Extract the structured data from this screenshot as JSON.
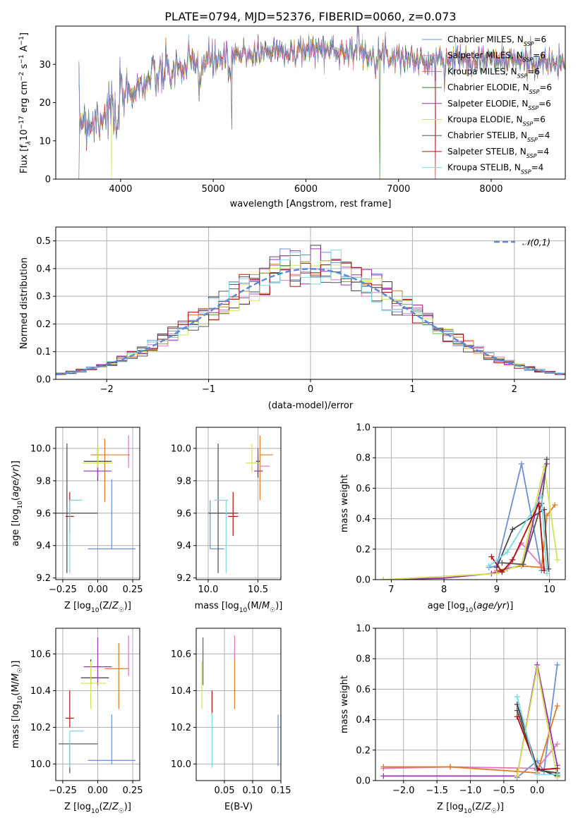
{
  "figure_title": "PLATE=0794, MJD=52376, FIBERID=0060, z=0.073",
  "colors": {
    "Chabrier MILES": "#1f77b4",
    "Salpeter MILES": "#e377c2",
    "Kroupa MILES": "#e07b24",
    "Chabrier ELODIE": "#3a3a3a",
    "Salpeter ELODIE": "#9b30b0",
    "Kroupa ELODIE": "#d4e157",
    "Chabrier STELIB": "#555555",
    "Salpeter STELIB": "#b01010",
    "Kroupa STELIB": "#7fd8e0",
    "chab_miles_line": "#6a8fd8",
    "chab_elodie_line": "#4a4a4a",
    "gauss": "#5b8bd8"
  },
  "chart_data": [
    {
      "id": "spectrum",
      "type": "line",
      "xlabel": "wavelength [Angstrom, rest frame]",
      "ylabel_parts": [
        "Flux [f",
        "λ",
        "10",
        "−17",
        " erg cm",
        "−2",
        " s",
        "−1",
        " A",
        "−1",
        "]"
      ],
      "xlim": [
        3300,
        8800
      ],
      "ylim": [
        0,
        40
      ],
      "xticks": [
        4000,
        5000,
        6000,
        7000,
        8000
      ],
      "yticks": [
        0,
        10,
        20,
        30
      ],
      "grid": false,
      "legend_position": "top-right",
      "spectrum_shape": {
        "x_start": 3550,
        "x_end": 8800,
        "continuum": [
          [
            3550,
            16
          ],
          [
            3700,
            15
          ],
          [
            3950,
            20
          ],
          [
            4100,
            23
          ],
          [
            4400,
            27
          ],
          [
            4800,
            30
          ],
          [
            5200,
            32
          ],
          [
            5600,
            33.5
          ],
          [
            6000,
            34
          ],
          [
            6500,
            33.5
          ],
          [
            7000,
            32
          ],
          [
            7300,
            30.5
          ],
          [
            7600,
            31.5
          ],
          [
            8200,
            31
          ],
          [
            8800,
            30
          ]
        ]
      },
      "series": [
        {
          "name": "Chabrier MILES",
          "nssp": "6",
          "color_key": "Chabrier MILES"
        },
        {
          "name": "Salpeter MILES",
          "nssp": "6",
          "color_key": "Salpeter MILES"
        },
        {
          "name": "Kroupa MILES",
          "nssp": "6",
          "color_key": "Kroupa MILES"
        },
        {
          "name": "Chabrier ELODIE",
          "nssp": "6",
          "color_key": "Chabrier ELODIE"
        },
        {
          "name": "Salpeter ELODIE",
          "nssp": "6",
          "color_key": "Salpeter ELODIE"
        },
        {
          "name": "Kroupa ELODIE",
          "nssp": "6",
          "color_key": "Kroupa ELODIE"
        },
        {
          "name": "Chabrier STELIB",
          "nssp": "4",
          "color_key": "Chabrier STELIB"
        },
        {
          "name": "Salpeter STELIB",
          "nssp": "4",
          "color_key": "Salpeter STELIB"
        },
        {
          "name": "Kroupa STELIB",
          "nssp": "4",
          "color_key": "Kroupa STELIB"
        }
      ]
    },
    {
      "id": "residuals",
      "type": "step",
      "xlabel": "(data-model)/error",
      "ylabel": "Normed distribution",
      "xlim": [
        -2.5,
        2.5
      ],
      "ylim": [
        0,
        0.55
      ],
      "xticks": [
        -2,
        -1,
        0,
        1,
        2
      ],
      "yticks": [
        0.0,
        0.1,
        0.2,
        0.3,
        0.4,
        0.5
      ],
      "grid": true,
      "legend": {
        "label": "𝒩(0,1)",
        "position": "top-right"
      },
      "bin_width": 0.1
    },
    {
      "id": "age_vs_Z",
      "type": "errorbar",
      "xlabel": "Z [log10(Z/Z☉)]",
      "ylabel": "age  [log10(age/yr)]",
      "xlim": [
        -0.3,
        0.3
      ],
      "ylim": [
        9.19,
        10.13
      ],
      "xticks": [
        -0.25,
        0.0,
        0.25
      ],
      "yticks": [
        9.2,
        9.4,
        9.6,
        9.8,
        10.0
      ],
      "grid": true,
      "points": [
        {
          "c": "chab_miles_line",
          "x": 0.1,
          "xerr": [
            0.17,
            0.17
          ],
          "y": 9.38,
          "yerr": [
            0.0,
            0.43
          ]
        },
        {
          "c": "Kroupa MILES",
          "x": 0.05,
          "xerr": [
            0.1,
            0.18
          ],
          "y": 9.96,
          "yerr": [
            0.29,
            0.1
          ]
        },
        {
          "c": "Salpeter MILES",
          "x": 0.22,
          "xerr": [
            0.0,
            0.0
          ],
          "y": 9.96,
          "yerr": [
            0.08,
            0.12
          ]
        },
        {
          "c": "Chabrier ELODIE",
          "x": 0.0,
          "xerr": [
            0.1,
            0.1
          ],
          "y": 9.92,
          "yerr": [
            0.12,
            0.08
          ]
        },
        {
          "c": "Salpeter ELODIE",
          "x": 0.0,
          "xerr": [
            0.1,
            0.1
          ],
          "y": 9.86,
          "yerr": [
            0.04,
            0.14
          ]
        },
        {
          "c": "Kroupa ELODIE",
          "x": 0.0,
          "xerr": [
            0.11,
            0.11
          ],
          "y": 9.91,
          "yerr": [
            0.03,
            0.1
          ]
        },
        {
          "c": "chab_elodie_line",
          "x": -0.22,
          "xerr": [
            0.1,
            0.22
          ],
          "y": 9.6,
          "yerr": [
            0.37,
            0.43
          ]
        },
        {
          "c": "Salpeter STELIB",
          "x": -0.2,
          "xerr": [
            0.03,
            0.03
          ],
          "y": 9.58,
          "yerr": [
            0.1,
            0.15
          ]
        },
        {
          "c": "Kroupa STELIB",
          "x": -0.2,
          "xerr": [
            0.0,
            0.09
          ],
          "y": 9.68,
          "yerr": [
            0.45,
            0.0
          ]
        }
      ]
    },
    {
      "id": "age_vs_mass",
      "type": "errorbar",
      "xlabel": "mass [log10(M/M☉)]",
      "ylabel": "",
      "xlim": [
        9.88,
        10.73
      ],
      "ylim": [
        9.19,
        10.13
      ],
      "xticks": [
        10.0,
        10.5
      ],
      "yticks": [
        9.2,
        9.4,
        9.6,
        9.8,
        10.0
      ],
      "grid": true,
      "points": [
        {
          "c": "chab_miles_line",
          "x": 10.02,
          "xerr": [
            0.0,
            0.14
          ],
          "y": 9.38,
          "yerr": [
            0.0,
            0.3
          ]
        },
        {
          "c": "Kroupa MILES",
          "x": 10.52,
          "xerr": [
            0.0,
            0.13
          ],
          "y": 9.96,
          "yerr": [
            0.28,
            0.12
          ]
        },
        {
          "c": "Salpeter MILES",
          "x": 10.55,
          "xerr": [
            0.03,
            0.07
          ],
          "y": 9.89,
          "yerr": [
            0.0,
            0.0
          ]
        },
        {
          "c": "Chabrier ELODIE",
          "x": 10.5,
          "xerr": [
            0.02,
            0.02
          ],
          "y": 9.92,
          "yerr": [
            0.1,
            0.04
          ]
        },
        {
          "c": "Salpeter ELODIE",
          "x": 10.5,
          "xerr": [
            0.04,
            0.05
          ],
          "y": 9.86,
          "yerr": [
            0.0,
            0.14
          ]
        },
        {
          "c": "Kroupa ELODIE",
          "x": 10.44,
          "xerr": [
            0.06,
            0.06
          ],
          "y": 9.91,
          "yerr": [
            0.06,
            0.12
          ]
        },
        {
          "c": "chab_elodie_line",
          "x": 10.1,
          "xerr": [
            0.1,
            0.2
          ],
          "y": 9.6,
          "yerr": [
            0.37,
            0.43
          ]
        },
        {
          "c": "Salpeter STELIB",
          "x": 10.25,
          "xerr": [
            0.05,
            0.05
          ],
          "y": 9.58,
          "yerr": [
            0.12,
            0.15
          ]
        },
        {
          "c": "Kroupa STELIB",
          "x": 10.18,
          "xerr": [
            0.12,
            0.02
          ],
          "y": 9.68,
          "yerr": [
            0.45,
            0.0
          ]
        }
      ]
    },
    {
      "id": "mass_weight_vs_age",
      "type": "line",
      "xlabel": "age  [log10(age/yr)]",
      "ylabel": "mass weight",
      "xlim": [
        6.7,
        10.3
      ],
      "ylim": [
        0,
        1.0
      ],
      "xticks": [
        7,
        8,
        9,
        10
      ],
      "yticks": [
        0.0,
        0.2,
        0.4,
        0.6,
        0.8,
        1.0
      ],
      "grid": true,
      "series": [
        {
          "c": "chab_miles_line",
          "x": [
            8.85,
            9.0,
            9.47,
            9.85
          ],
          "y": [
            0.08,
            0.09,
            0.76,
            0.06
          ]
        },
        {
          "c": "Salpeter MILES",
          "x": [
            9.0,
            9.2,
            9.47,
            9.9
          ],
          "y": [
            0.05,
            0.07,
            0.24,
            0.07
          ]
        },
        {
          "c": "Kroupa MILES",
          "x": [
            9.0,
            9.47,
            9.85,
            9.95,
            10.1
          ],
          "y": [
            0.06,
            0.09,
            0.08,
            0.42,
            0.49
          ]
        },
        {
          "c": "chab_elodie_line",
          "x": [
            9.0,
            9.3,
            9.9,
            9.98
          ],
          "y": [
            0.08,
            0.33,
            0.46,
            0.07
          ]
        },
        {
          "c": "Salpeter ELODIE",
          "x": [
            6.85,
            8.0,
            8.9,
            9.5,
            9.95
          ],
          "y": [
            0.0,
            0.01,
            0.04,
            0.1,
            0.76
          ]
        },
        {
          "c": "Kroupa ELODIE",
          "x": [
            6.85,
            9.0,
            9.47,
            9.9,
            10.15
          ],
          "y": [
            0.0,
            0.04,
            0.1,
            0.74,
            0.13
          ]
        },
        {
          "c": "Chabrier STELIB",
          "x": [
            9.1,
            9.5,
            9.85,
            9.95
          ],
          "y": [
            0.11,
            0.1,
            0.5,
            0.79
          ]
        },
        {
          "c": "Salpeter STELIB",
          "x": [
            8.9,
            9.1,
            9.3,
            9.8,
            9.9
          ],
          "y": [
            0.15,
            0.05,
            0.13,
            0.5,
            0.06
          ]
        },
        {
          "c": "Kroupa STELIB",
          "x": [
            8.85,
            9.2,
            9.85,
            9.95
          ],
          "y": [
            0.09,
            0.18,
            0.55,
            0.04
          ]
        }
      ]
    },
    {
      "id": "mass_vs_Z",
      "type": "errorbar",
      "xlabel": "Z [log10(Z/Z☉)]",
      "ylabel": "mass [log10(M/M☉)]",
      "xlim": [
        -0.3,
        0.3
      ],
      "ylim": [
        9.91,
        10.74
      ],
      "xticks": [
        -0.25,
        0.0,
        0.25
      ],
      "yticks": [
        10.0,
        10.2,
        10.4,
        10.6
      ],
      "grid": true,
      "points": [
        {
          "c": "chab_miles_line",
          "x": 0.1,
          "xerr": [
            0.17,
            0.17
          ],
          "y": 10.02,
          "yerr": [
            0.02,
            0.25
          ]
        },
        {
          "c": "Kroupa MILES",
          "x": 0.15,
          "xerr": [
            0.1,
            0.07
          ],
          "y": 10.52,
          "yerr": [
            0.22,
            0.14
          ]
        },
        {
          "c": "Salpeter MILES",
          "x": 0.22,
          "xerr": [
            0.0,
            0.0
          ],
          "y": 10.55,
          "yerr": [
            0.07,
            0.15
          ]
        },
        {
          "c": "Chabrier ELODIE",
          "x": -0.05,
          "xerr": [
            0.07,
            0.13
          ],
          "y": 10.47,
          "yerr": [
            0.04,
            0.1
          ]
        },
        {
          "c": "Salpeter ELODIE",
          "x": 0.0,
          "xerr": [
            0.1,
            0.1
          ],
          "y": 10.53,
          "yerr": [
            0.1,
            0.16
          ]
        },
        {
          "c": "Kroupa ELODIE",
          "x": -0.05,
          "xerr": [
            0.07,
            0.11
          ],
          "y": 10.44,
          "yerr": [
            0.14,
            0.12
          ]
        },
        {
          "c": "chab_elodie_line",
          "x": -0.2,
          "xerr": [
            0.08,
            0.2
          ],
          "y": 10.11,
          "yerr": [
            0.16,
            0.0
          ]
        },
        {
          "c": "Salpeter STELIB",
          "x": -0.2,
          "xerr": [
            0.03,
            0.03
          ],
          "y": 10.25,
          "yerr": [
            0.05,
            0.15
          ]
        },
        {
          "c": "Kroupa STELIB",
          "x": -0.2,
          "xerr": [
            0.0,
            0.1
          ],
          "y": 10.18,
          "yerr": [
            0.2,
            0.0
          ]
        }
      ]
    },
    {
      "id": "mass_vs_ebv",
      "type": "errorbar",
      "xlabel": "E(B-V)",
      "ylabel": "",
      "xlim": [
        0.0,
        0.15
      ],
      "ylim": [
        9.91,
        10.74
      ],
      "xticks": [
        0.05,
        0.1,
        0.15
      ],
      "yticks": [
        10.0,
        10.2,
        10.4,
        10.6
      ],
      "grid": true,
      "points": [
        {
          "c": "chab_miles_line",
          "x": 0.145,
          "xerr": [
            0,
            0
          ],
          "y": 10.02,
          "yerr": [
            0.03,
            0.25
          ]
        },
        {
          "c": "Kroupa MILES",
          "x": 0.068,
          "xerr": [
            0,
            0
          ],
          "y": 10.5,
          "yerr": [
            0.2,
            0.12
          ]
        },
        {
          "c": "Salpeter MILES",
          "x": 0.068,
          "xerr": [
            0,
            0
          ],
          "y": 10.62,
          "yerr": [
            0.05,
            0.08
          ]
        },
        {
          "c": "Salpeter ELODIE",
          "x": 0.012,
          "xerr": [
            0,
            0
          ],
          "y": 10.53,
          "yerr": [
            0.1,
            0.16
          ]
        },
        {
          "c": "Kroupa ELODIE",
          "x": 0.01,
          "xerr": [
            0,
            0
          ],
          "y": 10.44,
          "yerr": [
            0.14,
            0.12
          ]
        },
        {
          "c": "Salpeter STELIB",
          "x": 0.028,
          "xerr": [
            0,
            0
          ],
          "y": 10.3,
          "yerr": [
            0.03,
            0.1
          ]
        },
        {
          "c": "Kroupa STELIB",
          "x": 0.028,
          "xerr": [
            0,
            0
          ],
          "y": 10.18,
          "yerr": [
            0.2,
            0.1
          ]
        }
      ]
    },
    {
      "id": "mass_weight_vs_Z",
      "type": "line",
      "xlabel": "Z [log10(Z/Z☉)]",
      "ylabel": "mass weight",
      "xlim": [
        -2.42,
        0.42
      ],
      "ylim": [
        0,
        1.0
      ],
      "xticks": [
        -2.0,
        -1.5,
        -1.0,
        -0.5,
        0.0
      ],
      "yticks": [
        0.0,
        0.2,
        0.4,
        0.6,
        0.8,
        1.0
      ],
      "grid": true,
      "series": [
        {
          "c": "chab_miles_line",
          "x": [
            -0.3,
            0.0,
            0.1,
            0.3
          ],
          "y": [
            0.02,
            0.13,
            0.06,
            0.76
          ]
        },
        {
          "c": "Salpeter MILES",
          "x": [
            -2.3,
            -1.3,
            0.0,
            0.3
          ],
          "y": [
            0.08,
            0.09,
            0.08,
            0.24
          ]
        },
        {
          "c": "Kroupa MILES",
          "x": [
            -2.3,
            -1.3,
            -0.3,
            0.0,
            0.3
          ],
          "y": [
            0.09,
            0.09,
            0.06,
            0.05,
            0.49
          ]
        },
        {
          "c": "Chabrier ELODIE",
          "x": [
            -0.3,
            0.0,
            0.3
          ],
          "y": [
            0.5,
            0.08,
            0.03
          ]
        },
        {
          "c": "Salpeter ELODIE",
          "x": [
            -2.3,
            -0.3,
            0.0,
            0.3
          ],
          "y": [
            0.03,
            0.03,
            0.76,
            0.1
          ]
        },
        {
          "c": "Kroupa ELODIE",
          "x": [
            -0.3,
            0.0,
            0.3
          ],
          "y": [
            0.03,
            0.74,
            0.02
          ]
        },
        {
          "c": "chab_elodie_line",
          "x": [
            -0.3,
            0.0,
            0.3
          ],
          "y": [
            0.46,
            0.07,
            0.05
          ]
        },
        {
          "c": "Salpeter STELIB",
          "x": [
            -0.3,
            0.0,
            0.3
          ],
          "y": [
            0.42,
            0.07,
            0.08
          ]
        },
        {
          "c": "Kroupa STELIB",
          "x": [
            -0.3,
            0.0,
            0.3
          ],
          "y": [
            0.55,
            0.04,
            0.04
          ]
        }
      ]
    }
  ]
}
